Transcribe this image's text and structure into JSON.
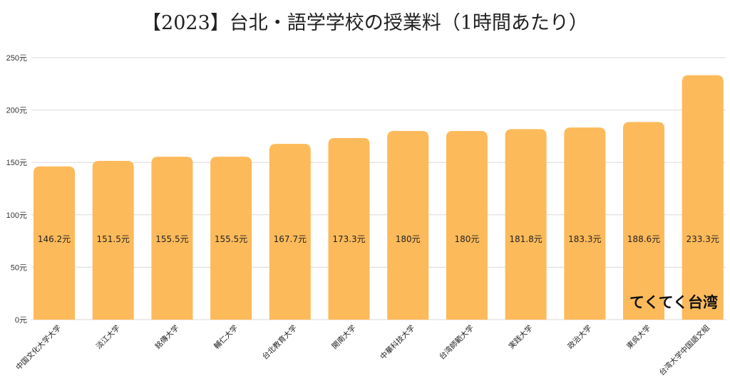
{
  "chart_data": {
    "type": "bar",
    "title": "【2023】台北・語学学校の授業料（1時間あたり）",
    "categories": [
      "中国文化大学大学",
      "淡江大学",
      "銘傳大学",
      "輔仁大学",
      "台北教育大学",
      "開南大学",
      "中華科技大学",
      "台湾師範大学",
      "実践大学",
      "政治大学",
      "東呉大学",
      "台湾大学中国語文組"
    ],
    "values": [
      146.2,
      151.5,
      155.5,
      155.5,
      167.7,
      173.3,
      180,
      180,
      181.8,
      183.3,
      188.6,
      233.3
    ],
    "data_labels": [
      "146.2元",
      "151.5元",
      "155.5元",
      "155.5元",
      "167.7元",
      "173.3元",
      "180元",
      "180元",
      "181.8元",
      "183.3元",
      "188.6元",
      "233.3元"
    ],
    "ylim": [
      0,
      250
    ],
    "yticks": [
      0,
      50,
      100,
      150,
      200,
      250
    ],
    "ytick_labels": [
      "0元",
      "50元",
      "100元",
      "150元",
      "200元",
      "250元"
    ],
    "xlabel": "",
    "ylabel": "",
    "grid": true,
    "bar_color": "#FDBA5A"
  },
  "watermark": "てくてく台湾"
}
